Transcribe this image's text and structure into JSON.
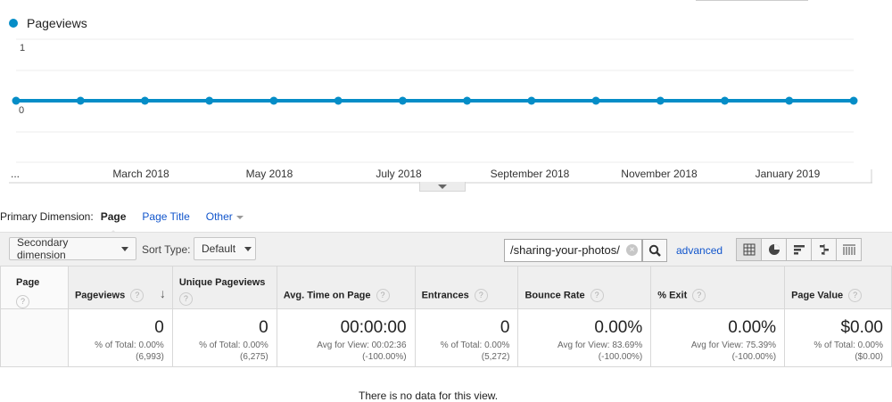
{
  "legend": {
    "series": "Pageviews",
    "color": "#058dc7"
  },
  "chart_data": {
    "type": "line",
    "series": [
      {
        "name": "Pageviews",
        "values": [
          0,
          0,
          0,
          0,
          0,
          0,
          0,
          0,
          0,
          0,
          0,
          0,
          0,
          0
        ]
      }
    ],
    "x_tick_labels": [
      "...",
      "March 2018",
      "May 2018",
      "July 2018",
      "September 2018",
      "November 2018",
      "January 2019"
    ],
    "y_tick_labels": [
      "1",
      "0"
    ],
    "ylim": [
      0,
      1
    ],
    "grid": true
  },
  "primary_dimension": {
    "label": "Primary Dimension:",
    "active": "Page",
    "links": [
      "Page Title",
      "Other"
    ]
  },
  "toolbar": {
    "secondary_dimension": "Secondary dimension",
    "sort_type_label": "Sort Type:",
    "sort_type_value": "Default",
    "search_value": "/sharing-your-photos/",
    "advanced": "advanced"
  },
  "table": {
    "headers": [
      "Page",
      "Pageviews",
      "Unique Pageviews",
      "Avg. Time on Page",
      "Entrances",
      "Bounce Rate",
      "% Exit",
      "Page Value"
    ],
    "totals": [
      {
        "value": "0",
        "line1": "% of Total: 0.00%",
        "line2": "(6,993)"
      },
      {
        "value": "0",
        "line1": "% of Total: 0.00%",
        "line2": "(6,275)"
      },
      {
        "value": "00:00:00",
        "line1": "Avg for View: 00:02:36",
        "line2": "(-100.00%)"
      },
      {
        "value": "0",
        "line1": "% of Total: 0.00%",
        "line2": "(5,272)"
      },
      {
        "value": "0.00%",
        "line1": "Avg for View: 83.69%",
        "line2": "(-100.00%)"
      },
      {
        "value": "0.00%",
        "line1": "Avg for View: 75.39%",
        "line2": "(-100.00%)"
      },
      {
        "value": "$0.00",
        "line1": "% of Total: 0.00%",
        "line2": "($0.00)"
      }
    ]
  },
  "footer_note": "There is no data for this view."
}
